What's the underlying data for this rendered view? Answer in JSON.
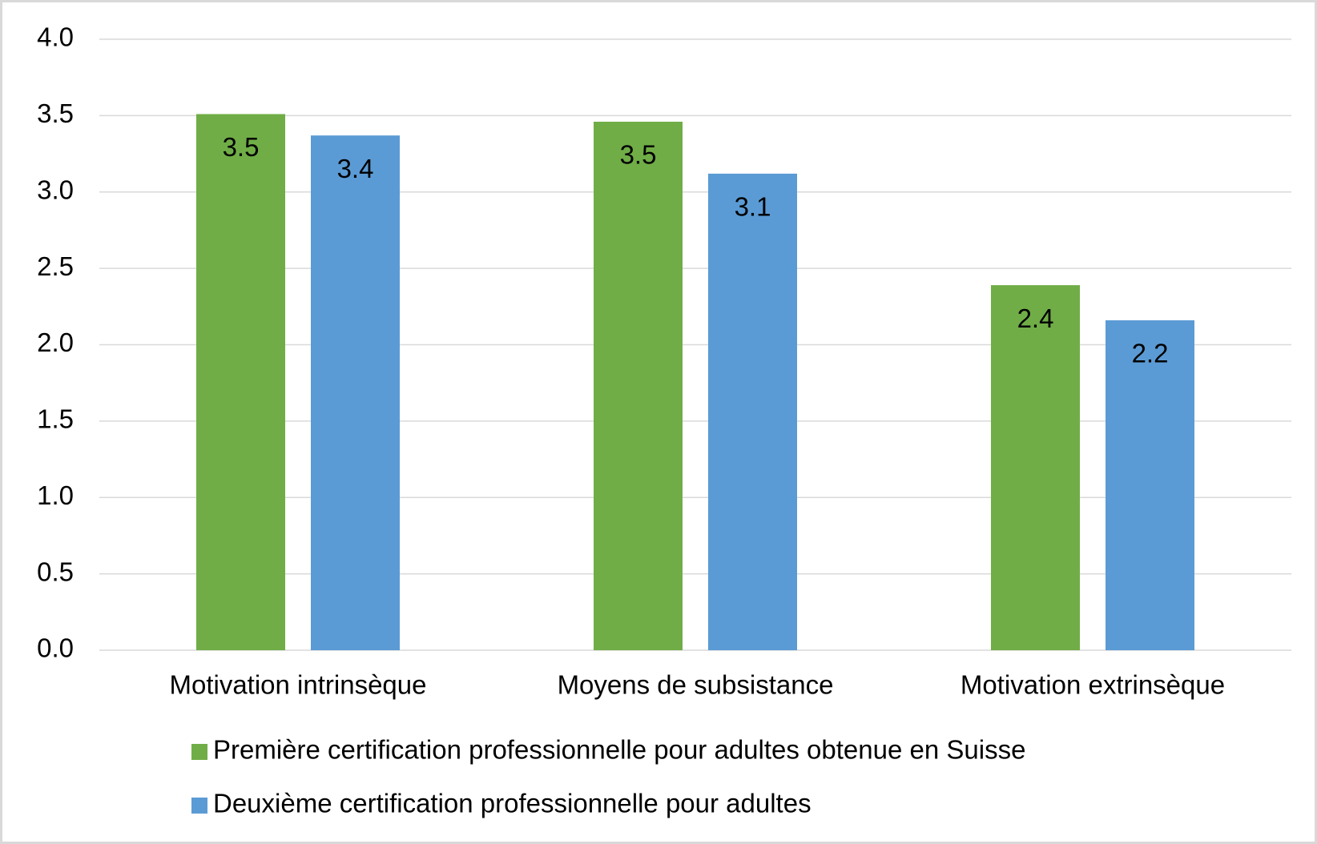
{
  "chart_data": {
    "type": "bar",
    "categories": [
      "Motivation intrinsèque",
      "Moyens de subsistance",
      "Motivation extrinsèque"
    ],
    "series": [
      {
        "name": "Première certification professionnelle pour adultes obtenue en Suisse",
        "color": "#70ad47",
        "values": [
          3.51,
          3.46,
          2.39
        ],
        "value_labels": [
          "3.5",
          "3.5",
          "2.4"
        ]
      },
      {
        "name": "Deuxième certification professionnelle pour adultes",
        "color": "#5b9bd5",
        "values": [
          3.37,
          3.12,
          2.16
        ],
        "value_labels": [
          "3.4",
          "3.1",
          "2.2"
        ]
      }
    ],
    "ylim": [
      0,
      4
    ],
    "yticks": [
      {
        "value": 0,
        "label": "0.0"
      },
      0.5,
      {
        "value": 1,
        "label": "1.0"
      },
      1.5,
      {
        "value": 2,
        "label": "2.0"
      },
      2.5,
      {
        "value": 3,
        "label": "3.0"
      },
      3.5,
      {
        "value": 4,
        "label": "4.0"
      }
    ],
    "grid": true
  }
}
